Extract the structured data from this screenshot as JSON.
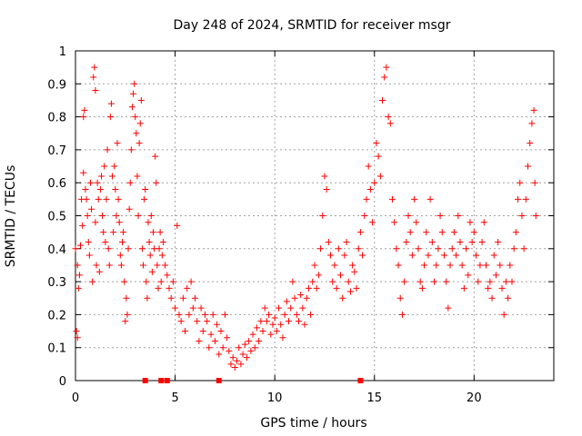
{
  "chart_data": {
    "type": "scatter",
    "title": "Day 248 of 2024, SRMTID for receiver msgr",
    "xlabel": "GPS time / hours",
    "ylabel": "SRMTID / TECUs",
    "xlim": [
      0,
      24
    ],
    "ylim": [
      0,
      1
    ],
    "x_ticks": [
      "0",
      "5",
      "10",
      "15",
      "20"
    ],
    "x_tick_values": [
      0,
      5,
      10,
      15,
      20
    ],
    "y_ticks": [
      "0",
      "0.1",
      "0.2",
      "0.3",
      "0.4",
      "0.5",
      "0.6",
      "0.7",
      "0.8",
      "0.9",
      "1"
    ],
    "y_tick_values": [
      0,
      0.1,
      0.2,
      0.3,
      0.4,
      0.5,
      0.6,
      0.7,
      0.8,
      0.9,
      1
    ],
    "grid": true,
    "marker": "plus",
    "marker_color": "#ff0000",
    "series": [
      {
        "name": "SRMTID",
        "points": [
          [
            0.0,
            0.4
          ],
          [
            0.05,
            0.15
          ],
          [
            0.1,
            0.35
          ],
          [
            0.1,
            0.13
          ],
          [
            0.15,
            0.28
          ],
          [
            0.2,
            0.32
          ],
          [
            0.25,
            0.41
          ],
          [
            0.3,
            0.55
          ],
          [
            0.35,
            0.47
          ],
          [
            0.4,
            0.63
          ],
          [
            0.4,
            0.8
          ],
          [
            0.45,
            0.82
          ],
          [
            0.5,
            0.58
          ],
          [
            0.55,
            0.55
          ],
          [
            0.6,
            0.5
          ],
          [
            0.65,
            0.42
          ],
          [
            0.7,
            0.38
          ],
          [
            0.75,
            0.6
          ],
          [
            0.8,
            0.52
          ],
          [
            0.85,
            0.3
          ],
          [
            0.9,
            0.92
          ],
          [
            0.95,
            0.95
          ],
          [
            1.0,
            0.88
          ],
          [
            1.0,
            0.48
          ],
          [
            1.05,
            0.35
          ],
          [
            1.1,
            0.6
          ],
          [
            1.15,
            0.55
          ],
          [
            1.2,
            0.33
          ],
          [
            1.25,
            0.58
          ],
          [
            1.3,
            0.62
          ],
          [
            1.35,
            0.5
          ],
          [
            1.4,
            0.45
          ],
          [
            1.45,
            0.65
          ],
          [
            1.5,
            0.42
          ],
          [
            1.55,
            0.55
          ],
          [
            1.6,
            0.7
          ],
          [
            1.65,
            0.4
          ],
          [
            1.7,
            0.35
          ],
          [
            1.75,
            0.8
          ],
          [
            1.8,
            0.84
          ],
          [
            1.85,
            0.62
          ],
          [
            1.9,
            0.45
          ],
          [
            1.95,
            0.65
          ],
          [
            2.0,
            0.58
          ],
          [
            2.05,
            0.5
          ],
          [
            2.1,
            0.72
          ],
          [
            2.15,
            0.55
          ],
          [
            2.2,
            0.48
          ],
          [
            2.25,
            0.38
          ],
          [
            2.3,
            0.35
          ],
          [
            2.35,
            0.42
          ],
          [
            2.4,
            0.45
          ],
          [
            2.45,
            0.3
          ],
          [
            2.5,
            0.18
          ],
          [
            2.55,
            0.25
          ],
          [
            2.6,
            0.2
          ],
          [
            2.65,
            0.4
          ],
          [
            2.7,
            0.52
          ],
          [
            2.75,
            0.6
          ],
          [
            2.8,
            0.7
          ],
          [
            2.85,
            0.83
          ],
          [
            2.9,
            0.87
          ],
          [
            2.95,
            0.9
          ],
          [
            3.0,
            0.8
          ],
          [
            3.05,
            0.75
          ],
          [
            3.1,
            0.62
          ],
          [
            3.15,
            0.5
          ],
          [
            3.2,
            0.72
          ],
          [
            3.25,
            0.78
          ],
          [
            3.3,
            0.85
          ],
          [
            3.35,
            0.4
          ],
          [
            3.4,
            0.35
          ],
          [
            3.45,
            0.55
          ],
          [
            3.5,
            0.58
          ],
          [
            3.55,
            0.3
          ],
          [
            3.6,
            0.25
          ],
          [
            3.65,
            0.48
          ],
          [
            3.7,
            0.42
          ],
          [
            3.75,
            0.38
          ],
          [
            3.8,
            0.5
          ],
          [
            3.85,
            0.33
          ],
          [
            3.9,
            0.45
          ],
          [
            3.95,
            0.4
          ],
          [
            4.0,
            0.68
          ],
          [
            4.05,
            0.6
          ],
          [
            4.1,
            0.35
          ],
          [
            4.15,
            0.28
          ],
          [
            4.2,
            0.4
          ],
          [
            4.25,
            0.45
          ],
          [
            4.3,
            0.3
          ],
          [
            4.35,
            0.38
          ],
          [
            4.4,
            0.42
          ],
          [
            4.5,
            0.35
          ],
          [
            4.6,
            0.32
          ],
          [
            4.7,
            0.28
          ],
          [
            4.8,
            0.25
          ],
          [
            4.9,
            0.3
          ],
          [
            5.0,
            0.22
          ],
          [
            5.1,
            0.47
          ],
          [
            5.2,
            0.2
          ],
          [
            5.3,
            0.18
          ],
          [
            5.4,
            0.25
          ],
          [
            5.5,
            0.15
          ],
          [
            5.6,
            0.28
          ],
          [
            5.7,
            0.2
          ],
          [
            5.8,
            0.3
          ],
          [
            5.9,
            0.22
          ],
          [
            6.0,
            0.25
          ],
          [
            6.1,
            0.18
          ],
          [
            6.2,
            0.12
          ],
          [
            6.3,
            0.22
          ],
          [
            6.4,
            0.15
          ],
          [
            6.5,
            0.2
          ],
          [
            6.6,
            0.18
          ],
          [
            6.7,
            0.1
          ],
          [
            6.8,
            0.14
          ],
          [
            6.9,
            0.2
          ],
          [
            7.0,
            0.12
          ],
          [
            7.1,
            0.17
          ],
          [
            7.2,
            0.08
          ],
          [
            7.3,
            0.15
          ],
          [
            7.4,
            0.1
          ],
          [
            7.5,
            0.2
          ],
          [
            7.6,
            0.13
          ],
          [
            7.7,
            0.09
          ],
          [
            7.8,
            0.05
          ],
          [
            7.9,
            0.07
          ],
          [
            8.0,
            0.04
          ],
          [
            8.1,
            0.06
          ],
          [
            8.2,
            0.1
          ],
          [
            8.3,
            0.05
          ],
          [
            8.4,
            0.08
          ],
          [
            8.5,
            0.11
          ],
          [
            8.6,
            0.07
          ],
          [
            8.7,
            0.12
          ],
          [
            8.8,
            0.09
          ],
          [
            8.9,
            0.14
          ],
          [
            9.0,
            0.1
          ],
          [
            9.1,
            0.16
          ],
          [
            9.2,
            0.12
          ],
          [
            9.3,
            0.18
          ],
          [
            9.4,
            0.15
          ],
          [
            9.5,
            0.22
          ],
          [
            9.6,
            0.18
          ],
          [
            9.7,
            0.2
          ],
          [
            9.8,
            0.14
          ],
          [
            9.9,
            0.17
          ],
          [
            10.0,
            0.19
          ],
          [
            10.1,
            0.15
          ],
          [
            10.2,
            0.22
          ],
          [
            10.3,
            0.17
          ],
          [
            10.4,
            0.13
          ],
          [
            10.5,
            0.2
          ],
          [
            10.6,
            0.24
          ],
          [
            10.7,
            0.18
          ],
          [
            10.8,
            0.22
          ],
          [
            10.9,
            0.3
          ],
          [
            11.0,
            0.25
          ],
          [
            11.1,
            0.2
          ],
          [
            11.2,
            0.18
          ],
          [
            11.3,
            0.26
          ],
          [
            11.4,
            0.22
          ],
          [
            11.5,
            0.17
          ],
          [
            11.6,
            0.25
          ],
          [
            11.7,
            0.28
          ],
          [
            11.8,
            0.2
          ],
          [
            11.9,
            0.3
          ],
          [
            12.0,
            0.35
          ],
          [
            12.1,
            0.28
          ],
          [
            12.2,
            0.32
          ],
          [
            12.3,
            0.4
          ],
          [
            12.4,
            0.5
          ],
          [
            12.5,
            0.62
          ],
          [
            12.6,
            0.58
          ],
          [
            12.7,
            0.42
          ],
          [
            12.8,
            0.38
          ],
          [
            12.9,
            0.3
          ],
          [
            13.0,
            0.35
          ],
          [
            13.1,
            0.28
          ],
          [
            13.2,
            0.4
          ],
          [
            13.3,
            0.32
          ],
          [
            13.4,
            0.25
          ],
          [
            13.5,
            0.38
          ],
          [
            13.6,
            0.42
          ],
          [
            13.7,
            0.3
          ],
          [
            13.8,
            0.27
          ],
          [
            13.9,
            0.35
          ],
          [
            14.0,
            0.33
          ],
          [
            14.1,
            0.28
          ],
          [
            14.2,
            0.4
          ],
          [
            14.3,
            0.45
          ],
          [
            14.4,
            0.38
          ],
          [
            14.5,
            0.5
          ],
          [
            14.6,
            0.55
          ],
          [
            14.7,
            0.65
          ],
          [
            14.8,
            0.58
          ],
          [
            14.9,
            0.48
          ],
          [
            15.0,
            0.6
          ],
          [
            15.1,
            0.72
          ],
          [
            15.2,
            0.68
          ],
          [
            15.3,
            0.62
          ],
          [
            15.4,
            0.85
          ],
          [
            15.5,
            0.92
          ],
          [
            15.6,
            0.95
          ],
          [
            15.7,
            0.8
          ],
          [
            15.8,
            0.78
          ],
          [
            15.9,
            0.55
          ],
          [
            16.0,
            0.48
          ],
          [
            16.1,
            0.4
          ],
          [
            16.2,
            0.35
          ],
          [
            16.3,
            0.25
          ],
          [
            16.4,
            0.2
          ],
          [
            16.5,
            0.3
          ],
          [
            16.6,
            0.42
          ],
          [
            16.7,
            0.5
          ],
          [
            16.8,
            0.45
          ],
          [
            16.9,
            0.38
          ],
          [
            17.0,
            0.55
          ],
          [
            17.1,
            0.48
          ],
          [
            17.2,
            0.4
          ],
          [
            17.3,
            0.3
          ],
          [
            17.4,
            0.28
          ],
          [
            17.5,
            0.35
          ],
          [
            17.6,
            0.45
          ],
          [
            17.7,
            0.38
          ],
          [
            17.8,
            0.55
          ],
          [
            17.9,
            0.42
          ],
          [
            18.0,
            0.3
          ],
          [
            18.1,
            0.35
          ],
          [
            18.2,
            0.4
          ],
          [
            18.3,
            0.5
          ],
          [
            18.4,
            0.45
          ],
          [
            18.5,
            0.38
          ],
          [
            18.6,
            0.3
          ],
          [
            18.7,
            0.22
          ],
          [
            18.8,
            0.35
          ],
          [
            18.9,
            0.4
          ],
          [
            19.0,
            0.45
          ],
          [
            19.1,
            0.38
          ],
          [
            19.2,
            0.5
          ],
          [
            19.3,
            0.42
          ],
          [
            19.4,
            0.35
          ],
          [
            19.5,
            0.28
          ],
          [
            19.6,
            0.4
          ],
          [
            19.7,
            0.32
          ],
          [
            19.8,
            0.48
          ],
          [
            19.9,
            0.42
          ],
          [
            20.0,
            0.45
          ],
          [
            20.1,
            0.38
          ],
          [
            20.2,
            0.3
          ],
          [
            20.3,
            0.35
          ],
          [
            20.4,
            0.42
          ],
          [
            20.5,
            0.48
          ],
          [
            20.6,
            0.35
          ],
          [
            20.7,
            0.28
          ],
          [
            20.8,
            0.3
          ],
          [
            20.9,
            0.25
          ],
          [
            21.0,
            0.38
          ],
          [
            21.1,
            0.32
          ],
          [
            21.2,
            0.42
          ],
          [
            21.3,
            0.35
          ],
          [
            21.4,
            0.28
          ],
          [
            21.5,
            0.2
          ],
          [
            21.6,
            0.3
          ],
          [
            21.7,
            0.25
          ],
          [
            21.8,
            0.35
          ],
          [
            21.9,
            0.3
          ],
          [
            22.0,
            0.4
          ],
          [
            22.1,
            0.45
          ],
          [
            22.2,
            0.55
          ],
          [
            22.3,
            0.6
          ],
          [
            22.4,
            0.5
          ],
          [
            22.5,
            0.4
          ],
          [
            22.6,
            0.55
          ],
          [
            22.7,
            0.65
          ],
          [
            22.8,
            0.72
          ],
          [
            22.9,
            0.78
          ],
          [
            23.0,
            0.82
          ],
          [
            23.05,
            0.6
          ],
          [
            23.1,
            0.5
          ]
        ]
      }
    ],
    "axis_markers": [
      {
        "x": 3.5,
        "y": 0
      },
      {
        "x": 4.3,
        "y": 0
      },
      {
        "x": 4.6,
        "y": 0
      },
      {
        "x": 7.2,
        "y": 0
      },
      {
        "x": 14.3,
        "y": 0
      }
    ]
  }
}
